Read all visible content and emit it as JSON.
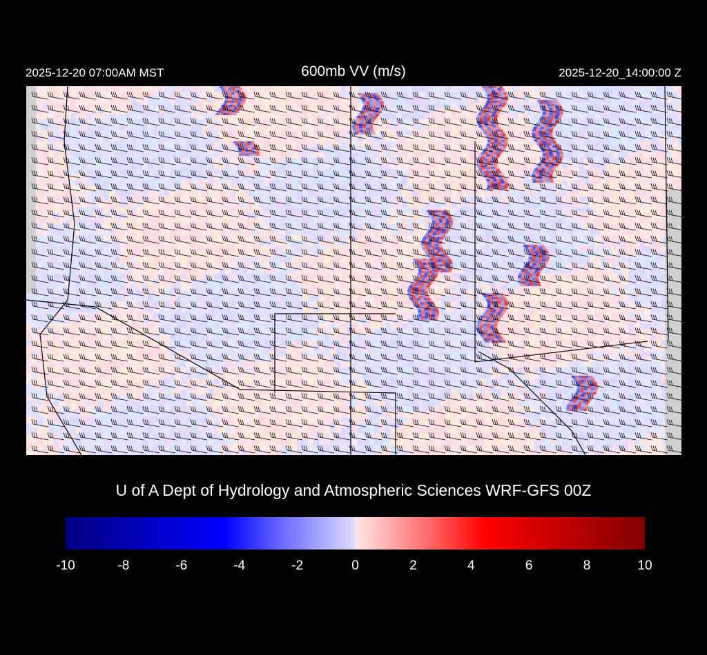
{
  "header": {
    "local_time": "2025-12-20 07:00AM MST",
    "title": "600mb VV (m/s)",
    "valid_time": "2025-12-20_14:00:00 Z"
  },
  "credit": "U of A Dept of Hydrology and Atmospheric Sciences WRF-GFS 00Z",
  "colorbar": {
    "ticks": [
      "-10",
      "-8",
      "-6",
      "-4",
      "-2",
      "0",
      "2",
      "4",
      "6",
      "8",
      "10"
    ],
    "range": [
      -10,
      10
    ],
    "colors": {
      "min": "#000080",
      "neg": "#0000ff",
      "zero": "#ffffff",
      "pos": "#ff0000",
      "max": "#800000"
    }
  },
  "map": {
    "field": "vertical velocity",
    "overlay": "wind barbs",
    "background_colors": {
      "weak_up": "#ffdcdc",
      "weak_down": "#dcdcff",
      "no_data": "#d0d0d0"
    }
  }
}
